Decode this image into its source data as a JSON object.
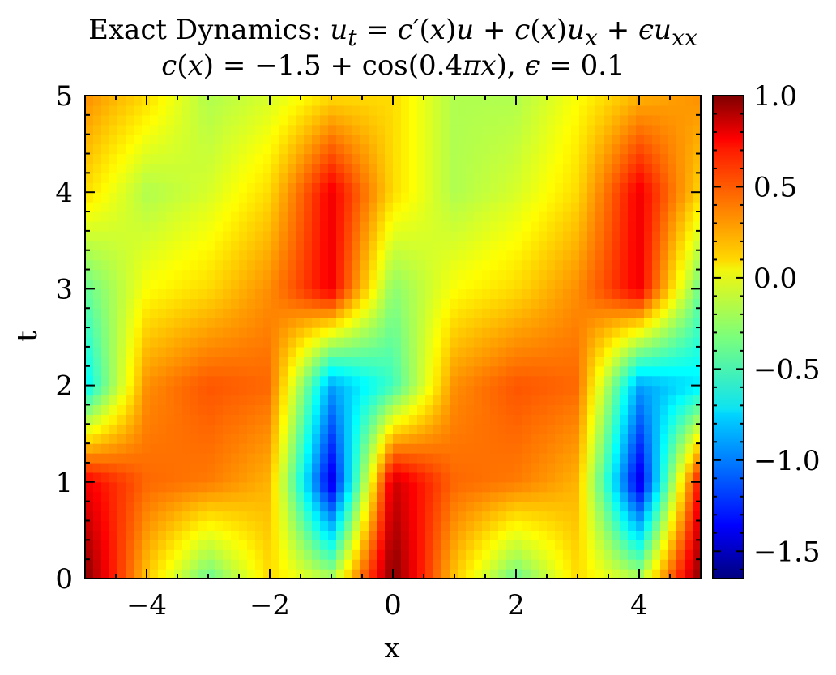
{
  "chart_data": [
    {
      "type": "heatmap",
      "title": "Exact Dynamics: u_t = c'(x)u + c(x)u_x + εu_xx",
      "subtitle": "c(x) = −1.5 + cos(0.4πx), ε = 0.1",
      "xlabel": "x",
      "ylabel": "t",
      "xlim": [
        -5,
        5
      ],
      "ylim": [
        0,
        5
      ],
      "xticks": [
        -4,
        -2,
        0,
        2,
        4
      ],
      "xtick_labels": [
        "−4",
        "−2",
        "0",
        "2",
        "4"
      ],
      "yticks": [
        0,
        1,
        2,
        3,
        4,
        5
      ],
      "ytick_labels": [
        "0",
        "1",
        "2",
        "3",
        "4",
        "5"
      ],
      "colormap": "jet",
      "colorbar": {
        "vmin": -1.65,
        "vmax": 1.0,
        "ticks": [
          1.0,
          0.5,
          0.0,
          -0.5,
          -1.0,
          -1.5
        ],
        "tick_labels": [
          "1.0",
          "0.5",
          "0.0",
          "−0.5",
          "−1.0",
          "−1.5"
        ]
      },
      "field": {
        "x": [
          -5,
          -4,
          -3,
          -2,
          -1,
          0,
          1,
          2,
          3,
          4,
          5
        ],
        "t": [
          0,
          1,
          2,
          3,
          4,
          5
        ],
        "u": [
          [
            1.0,
            0.15,
            -0.4,
            0.1,
            -0.2,
            1.0,
            0.15,
            -0.4,
            0.1,
            -0.2,
            1.0
          ],
          [
            0.7,
            0.4,
            0.35,
            0.2,
            -1.4,
            0.8,
            0.4,
            0.35,
            0.2,
            -1.4,
            0.7
          ],
          [
            -0.7,
            0.3,
            0.45,
            0.4,
            -0.9,
            -0.5,
            0.3,
            0.45,
            0.4,
            -0.9,
            -0.7
          ],
          [
            -0.4,
            0.0,
            0.1,
            0.3,
            0.7,
            -0.3,
            0.0,
            0.1,
            0.3,
            0.7,
            -0.4
          ],
          [
            0.1,
            -0.2,
            -0.1,
            0.1,
            0.7,
            0.1,
            -0.2,
            -0.1,
            0.1,
            0.7,
            0.1
          ],
          [
            0.3,
            0.1,
            -0.2,
            -0.1,
            0.1,
            0.1,
            -0.2,
            -0.2,
            0.0,
            0.2,
            0.3
          ]
        ]
      }
    }
  ]
}
